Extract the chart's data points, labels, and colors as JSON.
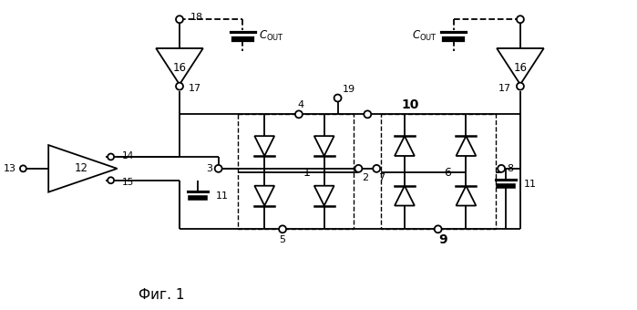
{
  "fig_width": 6.99,
  "fig_height": 3.4,
  "dpi": 100,
  "bg_color": "#ffffff",
  "line_color": "#000000",
  "title": "Фиг. 1"
}
